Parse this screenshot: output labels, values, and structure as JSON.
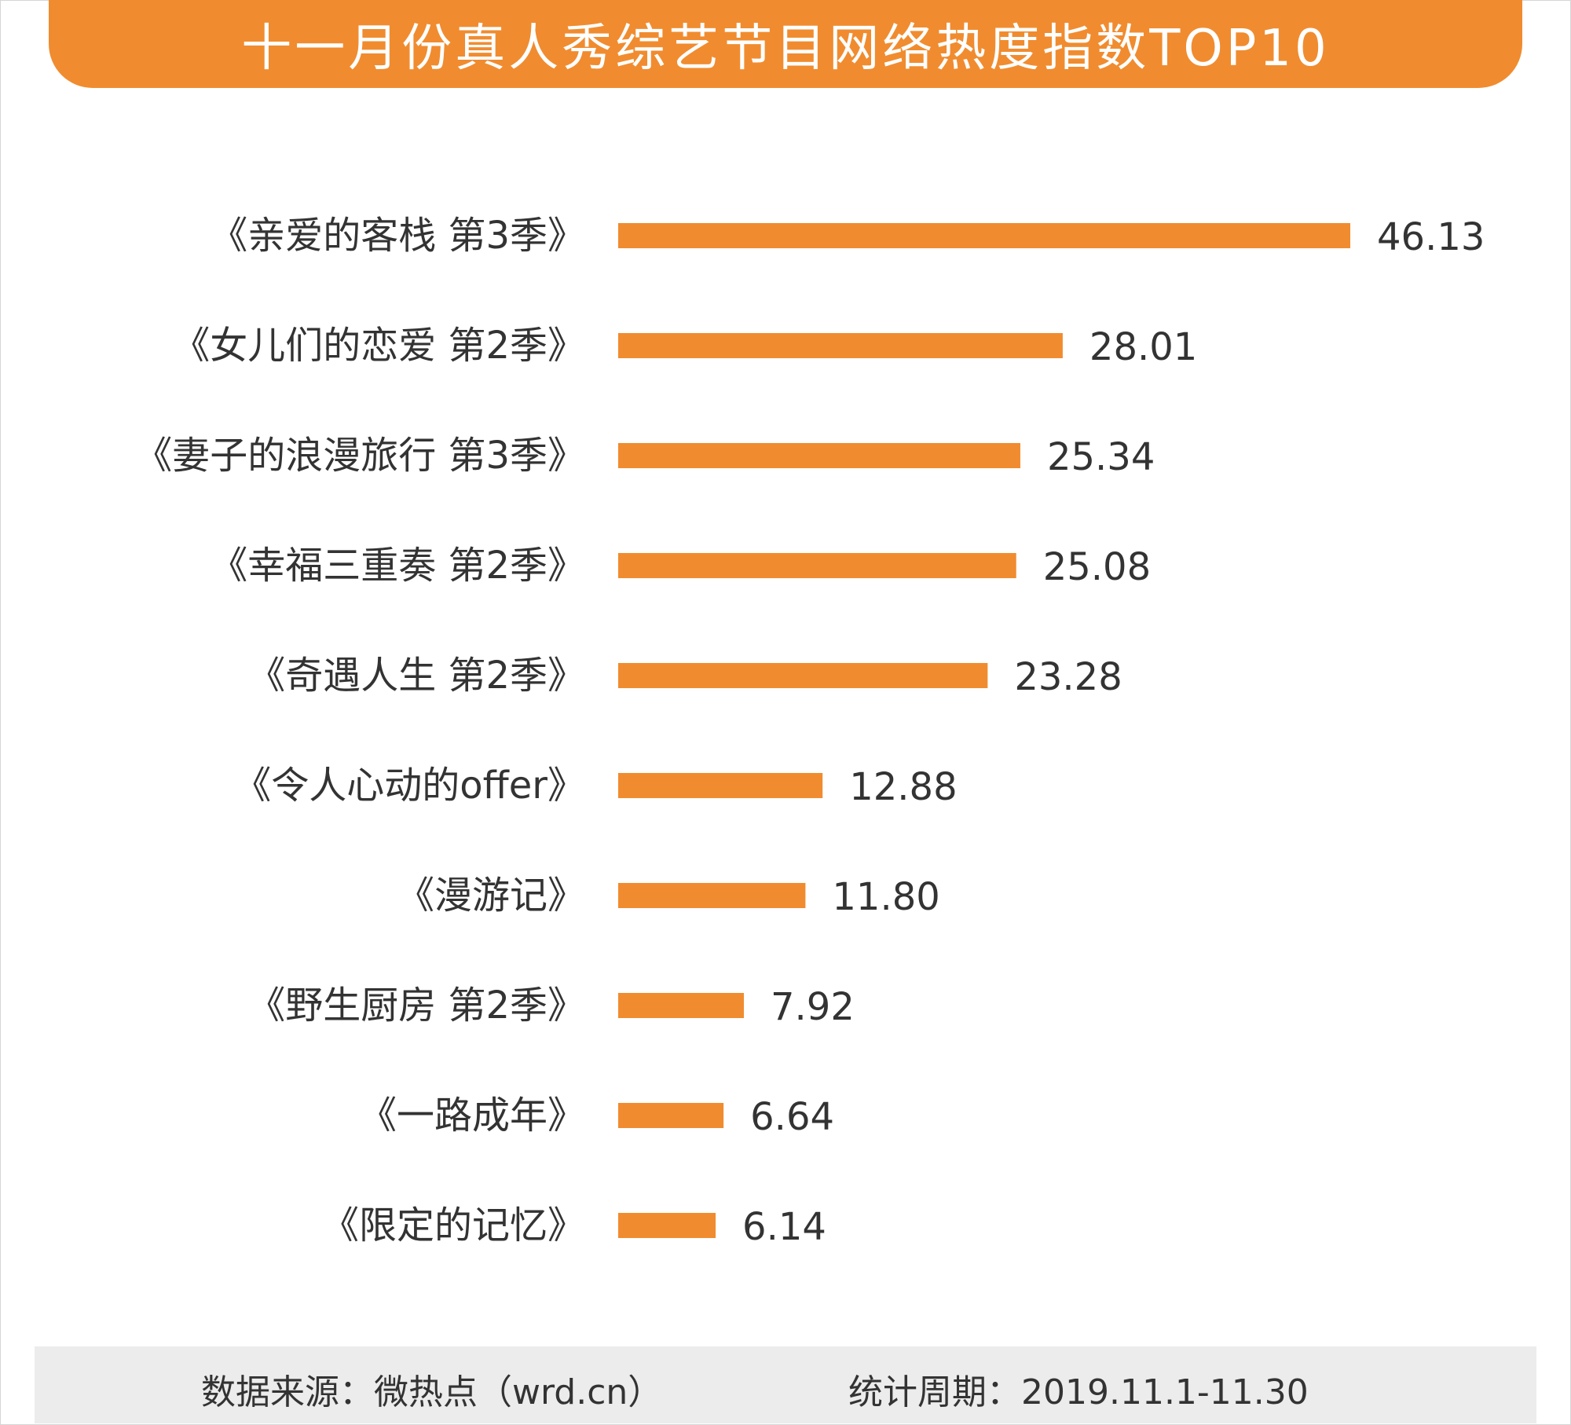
{
  "title": "十一月份真人秀综艺节目网络热度指数TOP10",
  "footer": {
    "source": "数据来源：微热点（wrd.cn）",
    "period": "统计周期：2019.11.1-11.30"
  },
  "colors": {
    "accent": "#f08c2f",
    "text": "#333333",
    "footer_bg": "#ececec"
  },
  "chart_data": {
    "type": "bar",
    "orientation": "horizontal",
    "categories": [
      "《亲爱的客栈 第3季》",
      "《女儿们的恋爱 第2季》",
      "《妻子的浪漫旅行 第3季》",
      "《幸福三重奏 第2季》",
      "《奇遇人生 第2季》",
      "《令人心动的offer》",
      "《漫游记》",
      "《野生厨房 第2季》",
      "《一路成年》",
      "《限定的记忆》"
    ],
    "values": [
      46.13,
      28.01,
      25.34,
      25.08,
      23.28,
      12.88,
      11.8,
      7.92,
      6.64,
      6.14
    ],
    "value_labels": [
      "46.13",
      "28.01",
      "25.34",
      "25.08",
      "23.28",
      "12.88",
      "11.80",
      "7.92",
      "6.64",
      "6.14"
    ],
    "xlim": [
      0,
      46.13
    ],
    "grid": false,
    "legend": "none"
  }
}
